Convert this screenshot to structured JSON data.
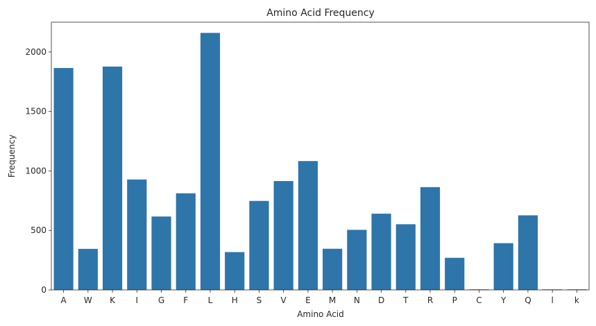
{
  "chart_data": {
    "type": "bar",
    "title": "Amino Acid Frequency",
    "xlabel": "Amino Acid",
    "ylabel": "Frequency",
    "categories": [
      "A",
      "W",
      "K",
      "I",
      "G",
      "F",
      "L",
      "H",
      "S",
      "V",
      "E",
      "M",
      "N",
      "D",
      "T",
      "R",
      "P",
      "C",
      "Y",
      "Q",
      "l",
      "k"
    ],
    "values": [
      1865,
      345,
      1877,
      928,
      617,
      812,
      2160,
      318,
      748,
      915,
      1083,
      346,
      505,
      641,
      552,
      864,
      270,
      5,
      393,
      627,
      4,
      5
    ],
    "ylim": [
      0,
      2250
    ],
    "yticks": [
      0,
      500,
      1000,
      1500,
      2000
    ],
    "grid": false,
    "bar_color": "#2e75aa"
  }
}
